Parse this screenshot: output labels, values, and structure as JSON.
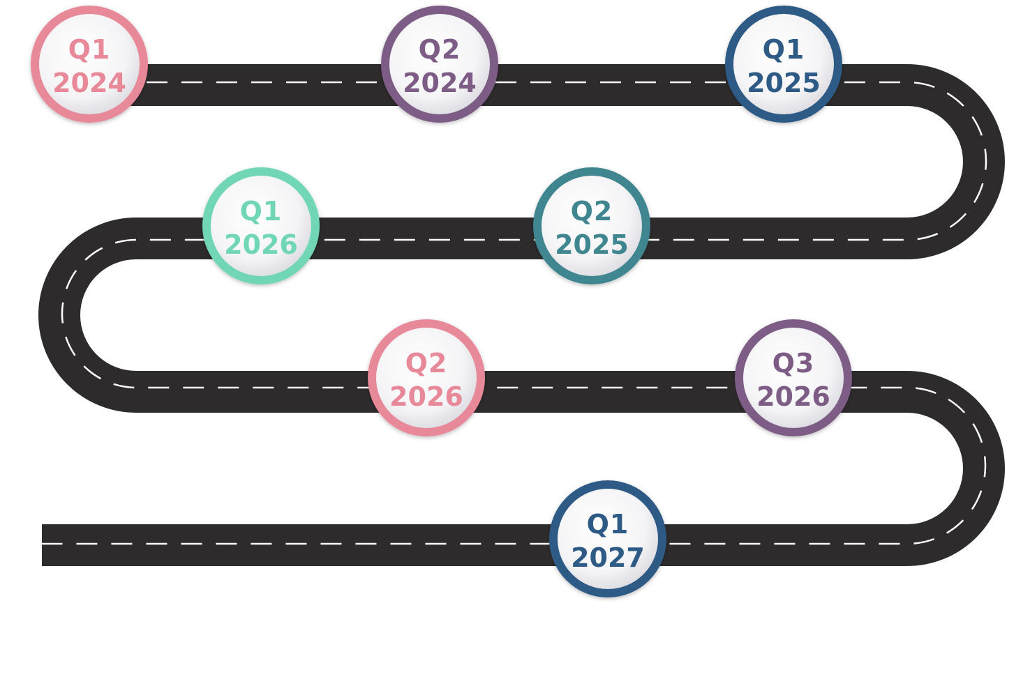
{
  "milestones": [
    {
      "quarter": "Q1",
      "year": "2024",
      "color": "#e8899a"
    },
    {
      "quarter": "Q2",
      "year": "2024",
      "color": "#7d5c85"
    },
    {
      "quarter": "Q1",
      "year": "2025",
      "color": "#2e5a86"
    },
    {
      "quarter": "Q1",
      "year": "2026",
      "color": "#6fd6b5"
    },
    {
      "quarter": "Q2",
      "year": "2025",
      "color": "#3f8690"
    },
    {
      "quarter": "Q2",
      "year": "2026",
      "color": "#e8899a"
    },
    {
      "quarter": "Q3",
      "year": "2026",
      "color": "#7d5c85"
    },
    {
      "quarter": "Q1",
      "year": "2027",
      "color": "#2e5a86"
    }
  ],
  "colors": {
    "road": "#2d2b2c",
    "lane_dash": "#ffffff",
    "background": "#ffffff"
  }
}
